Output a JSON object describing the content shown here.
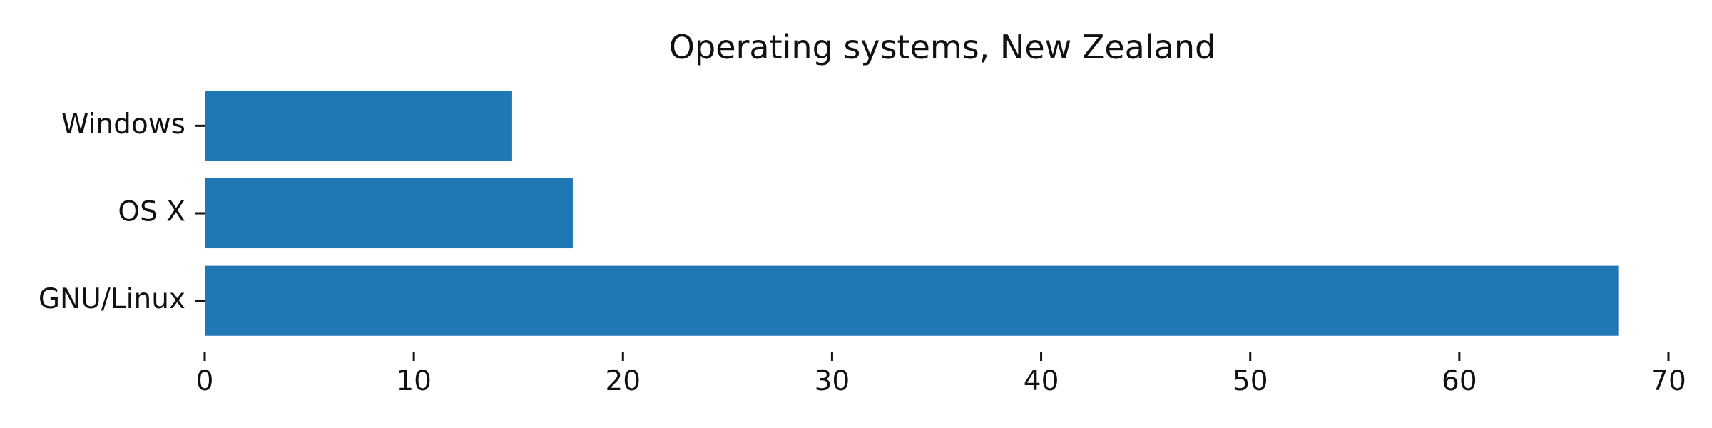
{
  "chart_data": {
    "type": "bar",
    "orientation": "horizontal",
    "title": "Operating systems, New Zealand",
    "categories": [
      "Windows",
      "OS X",
      "GNU/Linux"
    ],
    "values": [
      14.7,
      17.6,
      67.6
    ],
    "xlabel": "",
    "ylabel": "",
    "xlim": [
      0,
      70
    ],
    "xticks": [
      0,
      10,
      20,
      30,
      40,
      50,
      60,
      70
    ],
    "grid": false,
    "bar_color": "#1f77b4"
  }
}
